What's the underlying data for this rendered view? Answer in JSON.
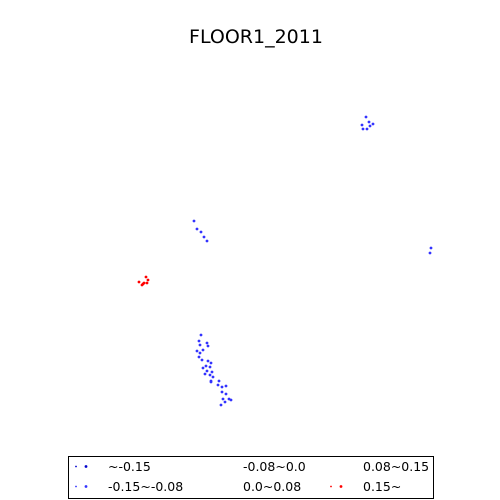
{
  "chart_data": {
    "type": "scatter",
    "title": "FLOOR1_2011",
    "xlabel": "",
    "ylabel": "",
    "axes_visible": false,
    "grid": false,
    "legend": {
      "placement": "bottom",
      "columns": 3,
      "entries": [
        {
          "label": "~-0.15",
          "color": "#0000cc"
        },
        {
          "label": "-0.15~-0.08",
          "color": "#3333ff"
        },
        {
          "label": "-0.08~0.0",
          "color": "#6666ff"
        },
        {
          "label": "0.0~0.08",
          "color": "#9999ff"
        },
        {
          "label": "0.08~0.15",
          "color": "#cc3366"
        },
        {
          "label": "0.15~",
          "color": "#ff0000"
        }
      ]
    },
    "series": [
      {
        "legend_index": 1,
        "color": "#3333ff",
        "points": [
          [
            366,
            117
          ],
          [
            369,
            122
          ],
          [
            373,
            124
          ],
          [
            370,
            126
          ],
          [
            362,
            125
          ],
          [
            367,
            129
          ],
          [
            363,
            129
          ],
          [
            431,
            248
          ],
          [
            430,
            253
          ],
          [
            194,
            221
          ],
          [
            197,
            229
          ],
          [
            201,
            232
          ],
          [
            204,
            237
          ],
          [
            207,
            241
          ]
        ]
      },
      {
        "legend_index": 1,
        "color": "#3333ff",
        "points": [
          [
            201,
            335
          ],
          [
            199,
            341
          ],
          [
            200,
            345
          ],
          [
            207,
            343
          ],
          [
            208,
            346
          ],
          [
            197,
            351
          ],
          [
            200,
            353
          ],
          [
            203,
            350
          ],
          [
            199,
            357
          ],
          [
            202,
            360
          ],
          [
            208,
            361
          ],
          [
            211,
            363
          ],
          [
            206,
            366
          ],
          [
            210,
            367
          ],
          [
            203,
            368
          ],
          [
            207,
            371
          ],
          [
            212,
            372
          ],
          [
            205,
            374
          ],
          [
            210,
            375
          ],
          [
            213,
            377
          ],
          [
            211,
            381
          ],
          [
            219,
            381
          ],
          [
            218,
            385
          ],
          [
            211,
            382
          ],
          [
            222,
            387
          ],
          [
            226,
            386
          ],
          [
            222,
            392
          ],
          [
            226,
            394
          ],
          [
            223,
            399
          ],
          [
            229,
            399
          ],
          [
            225,
            402
          ],
          [
            231,
            400
          ],
          [
            221,
            405
          ]
        ]
      },
      {
        "legend_index": 5,
        "color": "#ff0000",
        "points": [
          [
            146,
            277
          ],
          [
            148,
            280
          ],
          [
            139,
            282
          ],
          [
            144,
            283
          ],
          [
            147,
            283
          ],
          [
            142,
            285
          ],
          [
            143,
            284
          ]
        ]
      }
    ]
  }
}
